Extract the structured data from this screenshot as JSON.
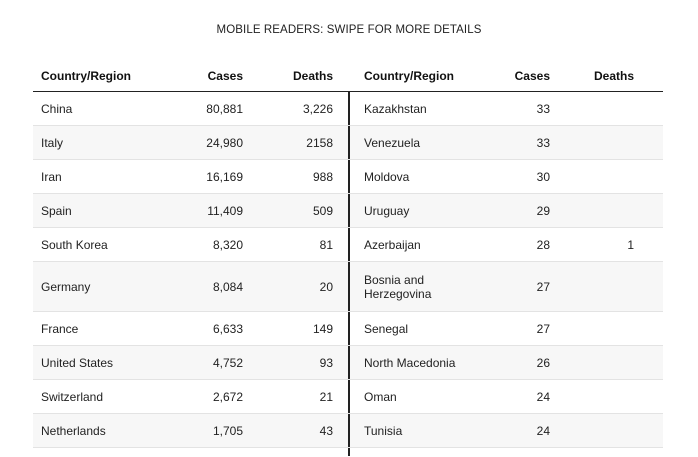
{
  "note": "MOBILE READERS: SWIPE FOR MORE DETAILS",
  "headers": {
    "country": "Country/Region",
    "cases": "Cases",
    "deaths": "Deaths",
    "country2": "Country/Region",
    "cases2": "Cases",
    "deaths2": "Deaths"
  },
  "rows": [
    {
      "c1": "China",
      "cases1": "80,881",
      "deaths1": "3,226",
      "c2": "Kazakhstan",
      "cases2": "33",
      "deaths2": ""
    },
    {
      "c1": "Italy",
      "cases1": "24,980",
      "deaths1": "2158",
      "c2": "Venezuela",
      "cases2": "33",
      "deaths2": ""
    },
    {
      "c1": "Iran",
      "cases1": "16,169",
      "deaths1": "988",
      "c2": "Moldova",
      "cases2": "30",
      "deaths2": ""
    },
    {
      "c1": "Spain",
      "cases1": "11,409",
      "deaths1": "509",
      "c2": "Uruguay",
      "cases2": "29",
      "deaths2": ""
    },
    {
      "c1": "South Korea",
      "cases1": "8,320",
      "deaths1": "81",
      "c2": "Azerbaijan",
      "cases2": "28",
      "deaths2": "1"
    },
    {
      "c1": "Germany",
      "cases1": "8,084",
      "deaths1": "20",
      "c2": "Bosnia and Herzegovina",
      "cases2": "27",
      "deaths2": ""
    },
    {
      "c1": "France",
      "cases1": "6,633",
      "deaths1": "149",
      "c2": "Senegal",
      "cases2": "27",
      "deaths2": ""
    },
    {
      "c1": "United States",
      "cases1": "4,752",
      "deaths1": "93",
      "c2": "North Macedonia",
      "cases2": "26",
      "deaths2": ""
    },
    {
      "c1": "Switzerland",
      "cases1": "2,672",
      "deaths1": "21",
      "c2": "Oman",
      "cases2": "24",
      "deaths2": ""
    },
    {
      "c1": "Netherlands",
      "cases1": "1,705",
      "deaths1": "43",
      "c2": "Tunisia",
      "cases2": "24",
      "deaths2": ""
    }
  ]
}
